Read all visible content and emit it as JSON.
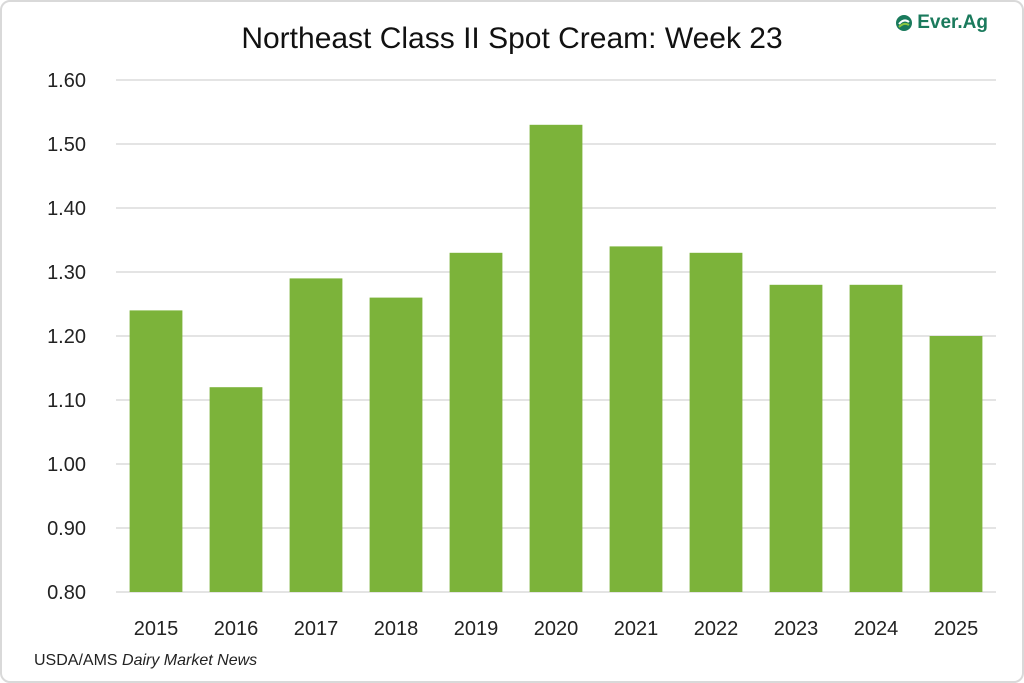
{
  "chart_data": {
    "type": "bar",
    "title": "Northeast Class II Spot Cream: Week 23",
    "xlabel": "",
    "ylabel": "",
    "categories": [
      "2015",
      "2016",
      "2017",
      "2018",
      "2019",
      "2020",
      "2021",
      "2022",
      "2023",
      "2024",
      "2025"
    ],
    "values": [
      1.24,
      1.12,
      1.29,
      1.26,
      1.33,
      1.53,
      1.34,
      1.33,
      1.28,
      1.28,
      1.2
    ],
    "ylim": [
      0.8,
      1.6
    ],
    "yticks": [
      "0.80",
      "0.90",
      "1.00",
      "1.10",
      "1.20",
      "1.30",
      "1.40",
      "1.50",
      "1.60"
    ],
    "grid": true,
    "bar_color": "#7cb33a",
    "grid_color": "#c8c8c8"
  },
  "logo": {
    "text": "Ever.Ag",
    "icon": "ever-ag-leaf-icon",
    "color": "#1a7a5c"
  },
  "source": {
    "prefix": "USDA/AMS ",
    "italic": "Dairy Market News"
  }
}
